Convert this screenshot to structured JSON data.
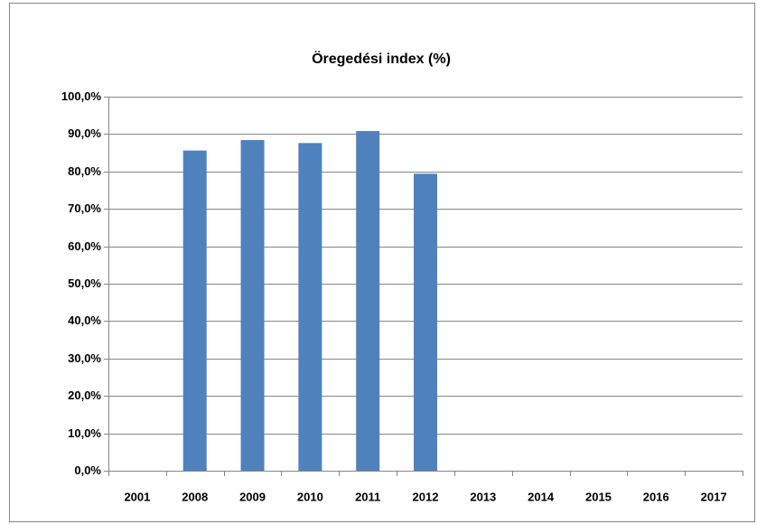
{
  "chart_data": {
    "type": "bar",
    "title": "Öregedési index (%)",
    "categories": [
      "2001",
      "2008",
      "2009",
      "2010",
      "2011",
      "2012",
      "2013",
      "2014",
      "2015",
      "2016",
      "2017"
    ],
    "values": [
      null,
      85.6,
      88.4,
      87.6,
      90.8,
      79.4,
      null,
      null,
      null,
      null,
      null
    ],
    "color": "#4f81bd",
    "ylim": [
      0,
      100
    ],
    "yticks": [
      {
        "value": 0,
        "label": "0,0%"
      },
      {
        "value": 10,
        "label": "10,0%"
      },
      {
        "value": 20,
        "label": "20,0%"
      },
      {
        "value": 30,
        "label": "30,0%"
      },
      {
        "value": 40,
        "label": "40,0%"
      },
      {
        "value": 50,
        "label": "50,0%"
      },
      {
        "value": 60,
        "label": "60,0%"
      },
      {
        "value": 70,
        "label": "70,0%"
      },
      {
        "value": 80,
        "label": "80,0%"
      },
      {
        "value": 90,
        "label": "90,0%"
      },
      {
        "value": 100,
        "label": "100,0%"
      }
    ],
    "grid": true
  }
}
